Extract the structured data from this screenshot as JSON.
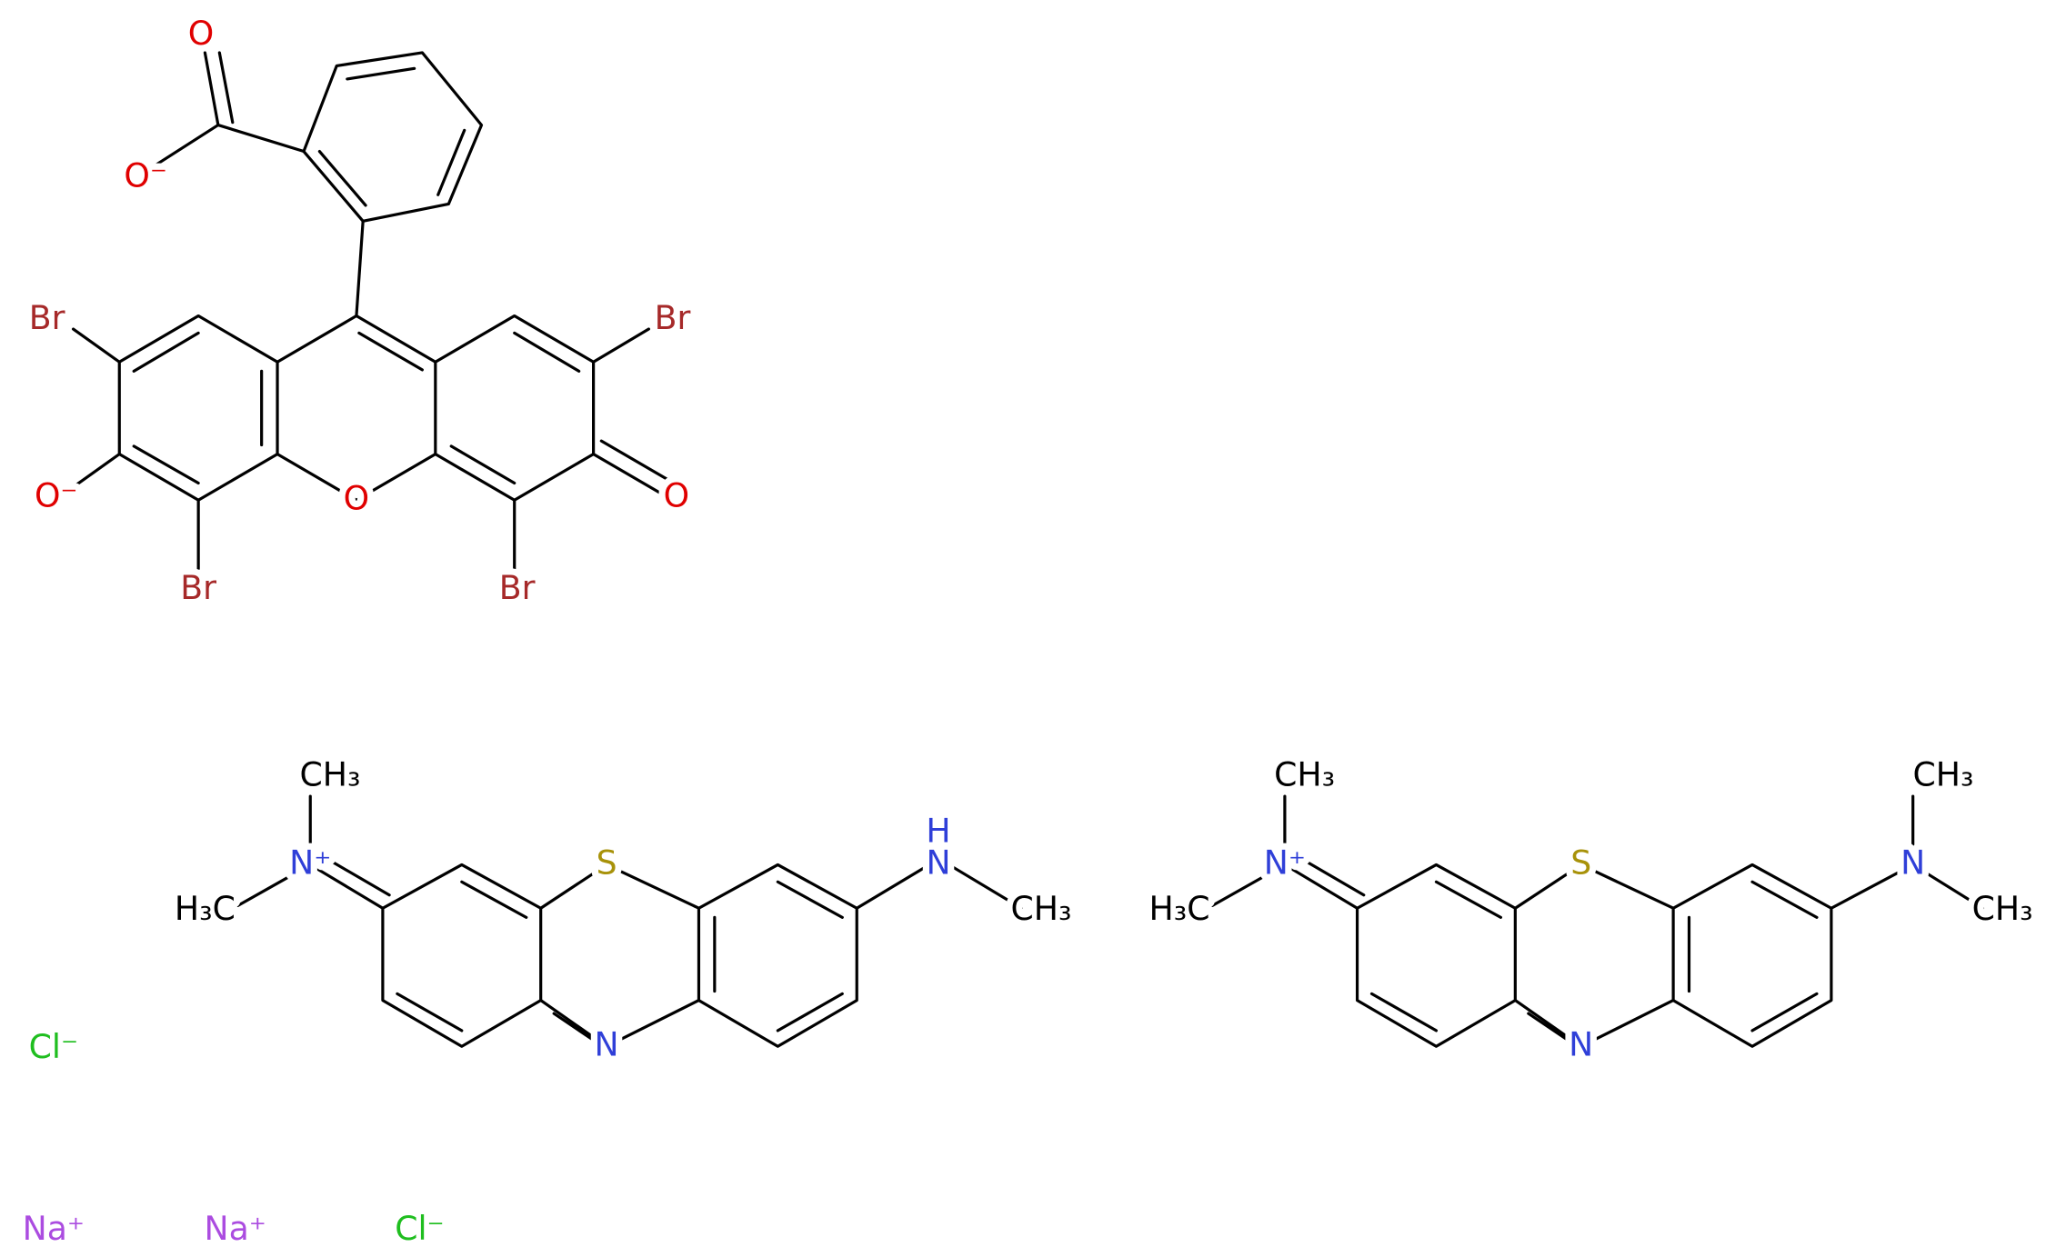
{
  "eosin": {
    "carboxyl_o": "O",
    "carboxyl_o_minus": "O⁻",
    "br_left": "Br",
    "br_right": "Br",
    "br_bottom_left": "Br",
    "br_bottom_right": "Br",
    "phenoxide": "O⁻",
    "ring_o": "O",
    "ketone_o": "O"
  },
  "azure_b": {
    "n_plus": "N⁺",
    "methyl_top": "CH₃",
    "methyl_left": "H₃C",
    "s": "S",
    "n_ring": "N",
    "nh": "H",
    "n_amine": "N",
    "methyl_right": "CH₃"
  },
  "methylene_blue": {
    "n_plus": "N⁺",
    "methyl_top": "CH₃",
    "methyl_left": "H₃C",
    "s": "S",
    "n_ring": "N",
    "n_amine": "N",
    "methyl_top_right": "CH₃",
    "methyl_right": "CH₃"
  },
  "ions": [
    "Cl⁻",
    "Na⁺",
    "Na⁺",
    "Cl⁻"
  ]
}
